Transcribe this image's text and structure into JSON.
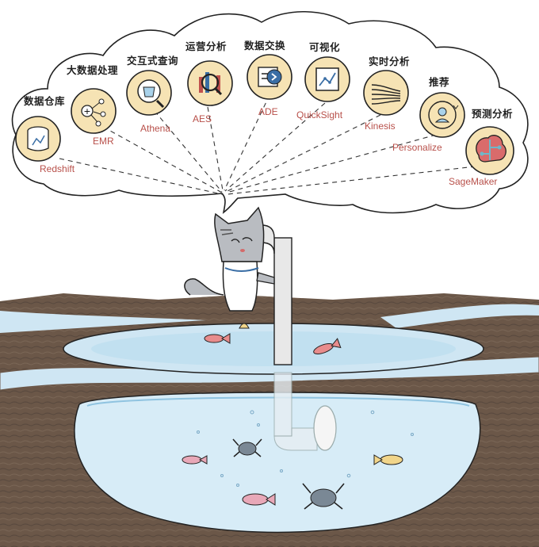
{
  "colors": {
    "service_label": "#b8504a",
    "icon_fill": "#f6e3b4",
    "water_light": "#cfe6f3",
    "water_mid": "#a9d2ea",
    "earth_dark": "#5a4a3f",
    "earth_mid": "#7a6656"
  },
  "services": [
    {
      "category": "数据仓库",
      "name": "Redshift",
      "icon": "chart-cylinder-icon"
    },
    {
      "category": "大数据处理",
      "name": "EMR",
      "icon": "network-nodes-icon"
    },
    {
      "category": "交互式查询",
      "name": "Athena",
      "icon": "bucket-search-icon"
    },
    {
      "category": "运营分析",
      "name": "AES",
      "icon": "magnifier-bars-icon"
    },
    {
      "category": "数据交换",
      "name": "ADE",
      "icon": "data-exchange-icon"
    },
    {
      "category": "可视化",
      "name": "QuickSight",
      "icon": "line-chart-icon"
    },
    {
      "category": "实时分析",
      "name": "Kinesis",
      "icon": "stream-lines-icon"
    },
    {
      "category": "推荐",
      "name": "Personalize",
      "icon": "person-cycle-icon"
    },
    {
      "category": "预测分析",
      "name": "SageMaker",
      "icon": "brain-circuit-icon"
    }
  ]
}
